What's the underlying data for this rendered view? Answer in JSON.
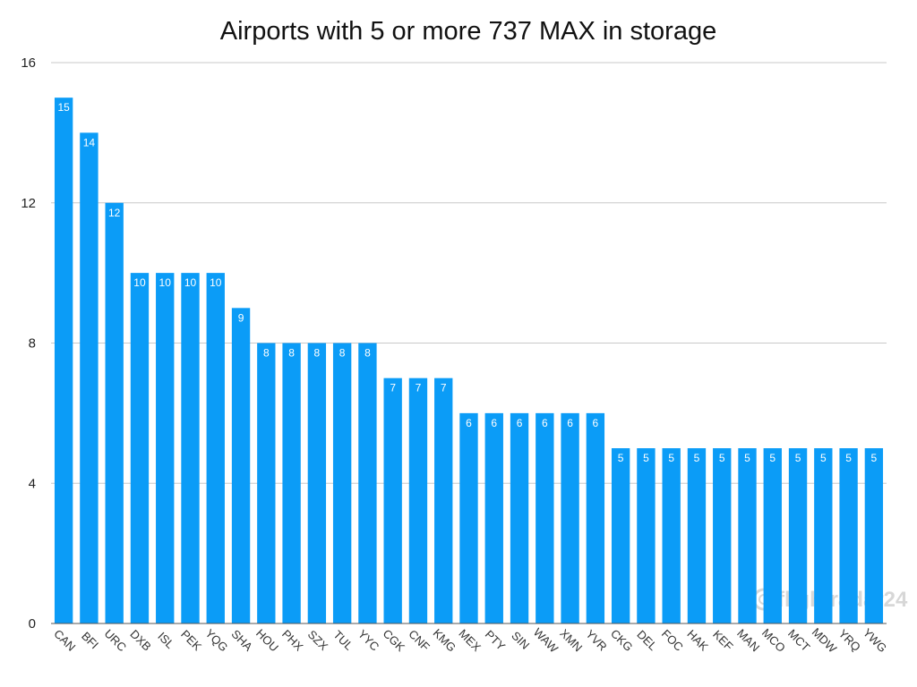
{
  "chart_data": {
    "type": "bar",
    "title": "Airports with 5 or more 737 MAX in storage",
    "xlabel": "",
    "ylabel": "",
    "categories": [
      "CAN",
      "BFI",
      "URC",
      "DXB",
      "ISL",
      "PEK",
      "YQG",
      "SHA",
      "HOU",
      "PHX",
      "SZX",
      "TUL",
      "YYC",
      "CGK",
      "CNF",
      "KMG",
      "MEX",
      "PTY",
      "SIN",
      "WAW",
      "XMN",
      "YVR",
      "CKG",
      "DEL",
      "FOC",
      "HAK",
      "KEF",
      "MAN",
      "MCO",
      "MCT",
      "MDW",
      "YRQ",
      "YWG"
    ],
    "values": [
      15,
      14,
      12,
      10,
      10,
      10,
      10,
      9,
      8,
      8,
      8,
      8,
      8,
      7,
      7,
      7,
      6,
      6,
      6,
      6,
      6,
      6,
      5,
      5,
      5,
      5,
      5,
      5,
      5,
      5,
      5,
      5,
      5
    ],
    "ylim": [
      0,
      16
    ],
    "yticks": [
      "0",
      "4",
      "8",
      "12",
      "16"
    ],
    "grid": true,
    "legend": "none",
    "data_labels": true,
    "bar_color": "#0b9cf7",
    "grid_color": "#c8c8c8"
  },
  "watermark": {
    "text": "flightradar24",
    "icon": "flightradar24-logo-icon"
  }
}
